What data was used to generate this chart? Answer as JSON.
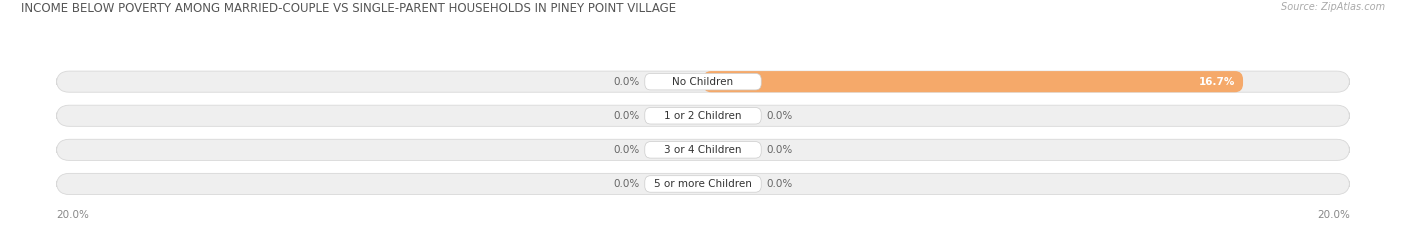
{
  "title": "INCOME BELOW POVERTY AMONG MARRIED-COUPLE VS SINGLE-PARENT HOUSEHOLDS IN PINEY POINT VILLAGE",
  "source": "Source: ZipAtlas.com",
  "categories": [
    "No Children",
    "1 or 2 Children",
    "3 or 4 Children",
    "5 or more Children"
  ],
  "married_values": [
    0.0,
    0.0,
    0.0,
    0.0
  ],
  "single_values": [
    16.7,
    0.0,
    0.0,
    0.0
  ],
  "married_color": "#a8aed4",
  "single_color": "#f5a96a",
  "bar_bg_color": "#efefef",
  "axis_limit": 20.0,
  "title_fontsize": 8.5,
  "label_fontsize": 7.5,
  "source_fontsize": 7.0,
  "bg_color": "#ffffff",
  "bar_height": 0.62
}
